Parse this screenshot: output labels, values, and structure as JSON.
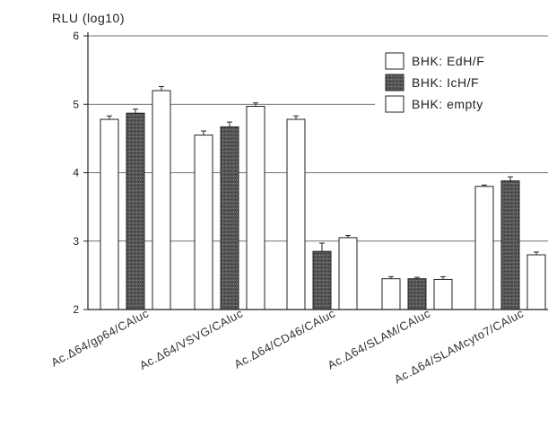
{
  "chart_data": {
    "type": "bar",
    "title": "",
    "ylabel": "RLU (log10)",
    "xlabel": "",
    "ylim": [
      2,
      6
    ],
    "yticks": [
      "2",
      "3",
      "4",
      "5",
      "6"
    ],
    "grid": "horizontal",
    "legend_position": "top-right",
    "categories": [
      "Ac.Δ64/gp64/CAluc",
      "Ac.Δ64/VSVG/CAluc",
      "Ac.Δ64/CD46/CAluc",
      "Ac.Δ64/SLAM/CAluc",
      "Ac.Δ64/SLAMcyto7/CAluc"
    ],
    "series": [
      {
        "name": "BHK: EdH/F",
        "fill": "#ffffff",
        "values": [
          4.78,
          4.55,
          4.78,
          2.45,
          3.8
        ],
        "errors": [
          0.05,
          0.06,
          0.05,
          0.03,
          0.02
        ]
      },
      {
        "name": "BHK: IcH/F",
        "fill": "#555555",
        "values": [
          4.87,
          4.67,
          2.85,
          2.45,
          3.88
        ],
        "errors": [
          0.06,
          0.07,
          0.12,
          0.02,
          0.06
        ]
      },
      {
        "name": "BHK: empty",
        "fill": "#ffffff",
        "values": [
          5.2,
          4.97,
          3.05,
          2.44,
          2.8
        ],
        "errors": [
          0.06,
          0.05,
          0.03,
          0.04,
          0.04
        ]
      }
    ]
  }
}
